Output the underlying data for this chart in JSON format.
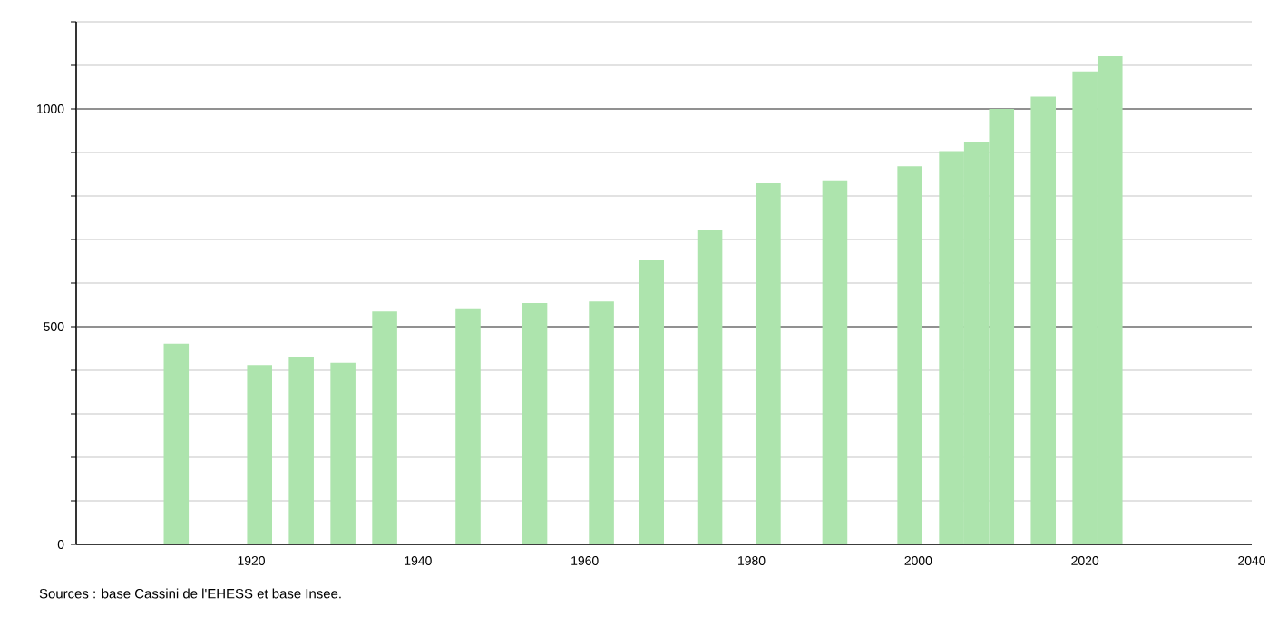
{
  "chart_data": {
    "type": "bar",
    "x": [
      1911,
      1921,
      1926,
      1931,
      1936,
      1946,
      1954,
      1962,
      1968,
      1975,
      1982,
      1990,
      1999,
      2004,
      2007,
      2010,
      2015,
      2020,
      2023
    ],
    "values": [
      461,
      412,
      429,
      417,
      535,
      542,
      554,
      558,
      653,
      722,
      829,
      836,
      868,
      903,
      924,
      1000,
      1028,
      1086,
      1121
    ],
    "color": "#ade4ad",
    "xlim": [
      1899,
      2040
    ],
    "xticks": [
      1920,
      1940,
      1960,
      1980,
      2000,
      2020,
      2040
    ],
    "ylim": [
      0,
      1200
    ],
    "yticks": [
      0,
      {
        "value": 100,
        "label": null
      },
      {
        "value": 200,
        "label": null
      },
      {
        "value": 300,
        "label": null
      },
      {
        "value": 400,
        "label": null
      },
      500,
      {
        "value": 600,
        "label": null
      },
      {
        "value": 700,
        "label": null
      },
      {
        "value": 800,
        "label": null
      },
      {
        "value": 900,
        "label": null
      },
      1000,
      {
        "value": 1100,
        "label": null
      },
      {
        "value": 1200,
        "label": null
      }
    ],
    "grid": "y",
    "annotations": [
      "Sources : base Cassini de l'EHESS et base Insee."
    ]
  }
}
